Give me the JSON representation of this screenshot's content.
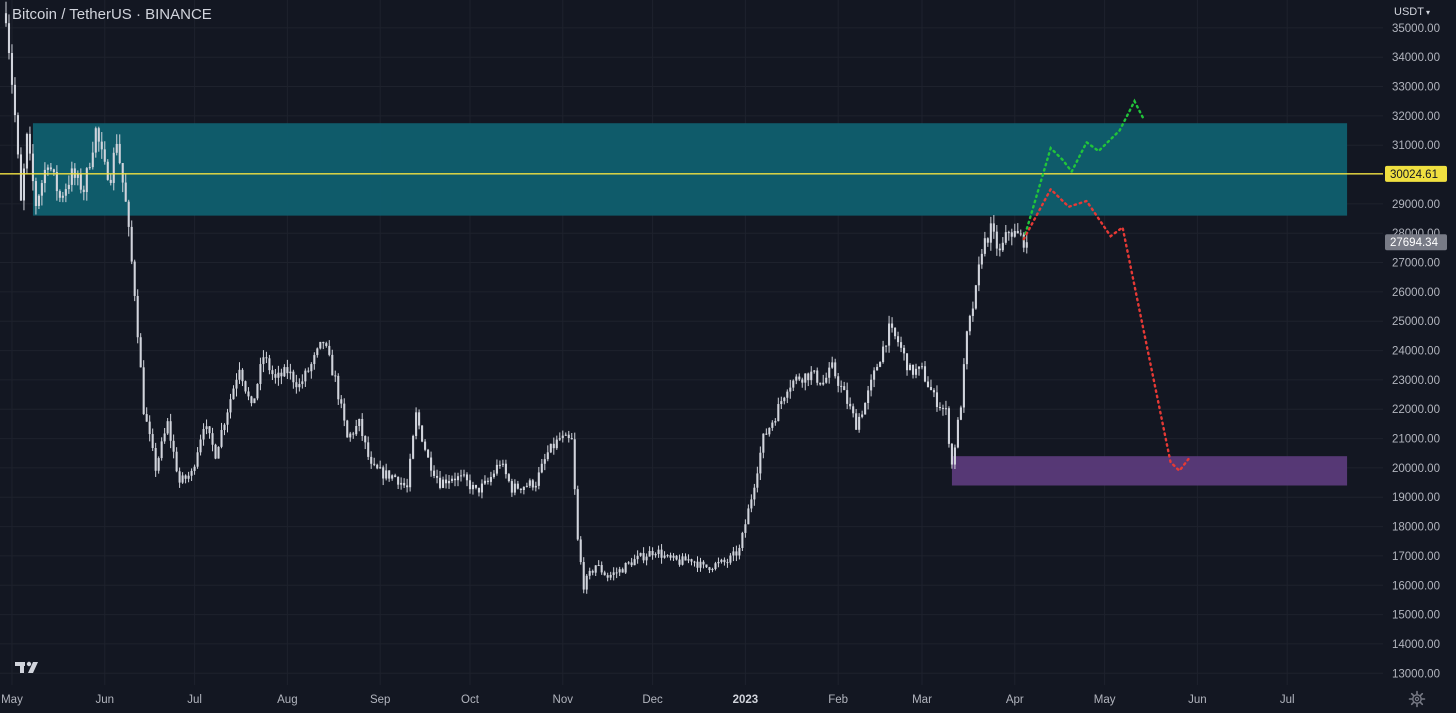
{
  "header": {
    "symbol_title": "Bitcoin / TetherUS · BINANCE",
    "currency": "USDT"
  },
  "icons": {
    "logo": "tradingview-logo-icon",
    "settings": "gear-icon",
    "dropdown": "chevron-down-icon"
  },
  "colors": {
    "background": "#131722",
    "grid": "#1e222d",
    "candles": "#d1d4dc",
    "resistance_zone": "#0f5f6f",
    "support_zone": "#5a3a7a",
    "level_line": "#f0e040",
    "bull_path": "#21c43a",
    "bear_path": "#e53935",
    "last_price_label": "#787b86"
  },
  "chart_data": {
    "type": "candlestick",
    "title": "Bitcoin / TetherUS · BINANCE",
    "y_axis": {
      "ticks": [
        13000,
        14000,
        15000,
        16000,
        17000,
        18000,
        19000,
        20000,
        21000,
        22000,
        23000,
        24000,
        25000,
        26000,
        27000,
        28000,
        29000,
        30000,
        31000,
        32000,
        33000,
        34000,
        35000
      ],
      "tick_labels": [
        "13000.00",
        "14000.00",
        "15000.00",
        "16000.00",
        "17000.00",
        "18000.00",
        "19000.00",
        "20000.00",
        "21000.00",
        "22000.00",
        "23000.00",
        "24000.00",
        "25000.00",
        "26000.00",
        "27000.00",
        "28000.00",
        "29000.00",
        "30000.00",
        "31000.00",
        "32000.00",
        "33000.00",
        "34000.00",
        "35000.00"
      ],
      "range": [
        12600,
        35950
      ],
      "side": "right"
    },
    "x_axis": {
      "labels": [
        "May",
        "Jun",
        "Jul",
        "Aug",
        "Sep",
        "Oct",
        "Nov",
        "Dec",
        "2023",
        "Feb",
        "Mar",
        "Apr",
        "May",
        "Jun",
        "Jul"
      ],
      "label_days": [
        0,
        31,
        61,
        92,
        123,
        153,
        184,
        214,
        245,
        276,
        304,
        335,
        365,
        396,
        426
      ],
      "range_days": [
        -4,
        458
      ]
    },
    "grid": true,
    "price_path": [
      [
        -2,
        35500
      ],
      [
        1,
        32000
      ],
      [
        3,
        29000
      ],
      [
        5,
        31200
      ],
      [
        8,
        29000
      ],
      [
        12,
        30500
      ],
      [
        16,
        29200
      ],
      [
        20,
        30000
      ],
      [
        24,
        29500
      ],
      [
        28,
        31500
      ],
      [
        31,
        30200
      ],
      [
        33,
        30000
      ],
      [
        35,
        31200
      ],
      [
        38,
        29000
      ],
      [
        41,
        26000
      ],
      [
        44,
        22000
      ],
      [
        48,
        20000
      ],
      [
        52,
        21500
      ],
      [
        56,
        19500
      ],
      [
        60,
        19800
      ],
      [
        64,
        21500
      ],
      [
        68,
        20500
      ],
      [
        72,
        22000
      ],
      [
        76,
        23500
      ],
      [
        80,
        22000
      ],
      [
        84,
        23800
      ],
      [
        88,
        23000
      ],
      [
        92,
        23300
      ],
      [
        96,
        22800
      ],
      [
        100,
        23500
      ],
      [
        104,
        24300
      ],
      [
        108,
        23000
      ],
      [
        112,
        21000
      ],
      [
        116,
        21500
      ],
      [
        120,
        20000
      ],
      [
        124,
        19800
      ],
      [
        128,
        19700
      ],
      [
        132,
        19300
      ],
      [
        135,
        21800
      ],
      [
        139,
        20300
      ],
      [
        143,
        19500
      ],
      [
        147,
        19700
      ],
      [
        151,
        19600
      ],
      [
        155,
        19200
      ],
      [
        159,
        19500
      ],
      [
        163,
        20200
      ],
      [
        167,
        19300
      ],
      [
        171,
        19400
      ],
      [
        175,
        19500
      ],
      [
        179,
        20500
      ],
      [
        183,
        21000
      ],
      [
        187,
        20900
      ],
      [
        189,
        17500
      ],
      [
        191,
        16000
      ],
      [
        195,
        16700
      ],
      [
        199,
        16300
      ],
      [
        203,
        16500
      ],
      [
        207,
        16800
      ],
      [
        211,
        17000
      ],
      [
        215,
        17200
      ],
      [
        219,
        16900
      ],
      [
        223,
        16800
      ],
      [
        227,
        16900
      ],
      [
        231,
        16600
      ],
      [
        235,
        16700
      ],
      [
        239,
        16800
      ],
      [
        243,
        17200
      ],
      [
        247,
        19000
      ],
      [
        251,
        21000
      ],
      [
        255,
        21800
      ],
      [
        259,
        22800
      ],
      [
        263,
        23100
      ],
      [
        267,
        23200
      ],
      [
        271,
        22900
      ],
      [
        274,
        23400
      ],
      [
        278,
        22500
      ],
      [
        282,
        21500
      ],
      [
        285,
        22200
      ],
      [
        289,
        23500
      ],
      [
        293,
        24700
      ],
      [
        296,
        24300
      ],
      [
        300,
        23300
      ],
      [
        304,
        23300
      ],
      [
        308,
        22400
      ],
      [
        312,
        21900
      ],
      [
        314,
        20100
      ],
      [
        317,
        22200
      ],
      [
        319,
        24500
      ],
      [
        322,
        26000
      ],
      [
        324,
        27500
      ],
      [
        327,
        28100
      ],
      [
        330,
        27300
      ],
      [
        333,
        28100
      ],
      [
        336,
        27900
      ],
      [
        339,
        27694.34
      ]
    ],
    "levels": [
      {
        "value": 30024.61,
        "label": "30024.61",
        "color": "#f0e040"
      }
    ],
    "last_price": {
      "value": 27694.34,
      "label": "27694.34"
    },
    "zones": [
      {
        "name": "resistance",
        "y_range": [
          28600,
          31750
        ],
        "x_range_days": [
          7,
          446
        ],
        "color": "#0f5f6f"
      },
      {
        "name": "support",
        "y_range": [
          19400,
          20400
        ],
        "x_range_days": [
          314,
          446
        ],
        "color": "#5a3a7a"
      }
    ],
    "projections": [
      {
        "name": "bullish",
        "color": "#21c43a",
        "points": [
          [
            338,
            27800
          ],
          [
            347,
            30900
          ],
          [
            351,
            30500
          ],
          [
            354,
            30100
          ],
          [
            359,
            31100
          ],
          [
            363,
            30800
          ],
          [
            370,
            31500
          ],
          [
            375,
            32500
          ],
          [
            378,
            31900
          ]
        ]
      },
      {
        "name": "bearish",
        "color": "#e53935",
        "points": [
          [
            338,
            27800
          ],
          [
            347,
            29500
          ],
          [
            353,
            28900
          ],
          [
            359,
            29100
          ],
          [
            367,
            27900
          ],
          [
            371,
            28200
          ],
          [
            387,
            20200
          ],
          [
            390,
            19900
          ],
          [
            393,
            20300
          ]
        ]
      }
    ]
  }
}
